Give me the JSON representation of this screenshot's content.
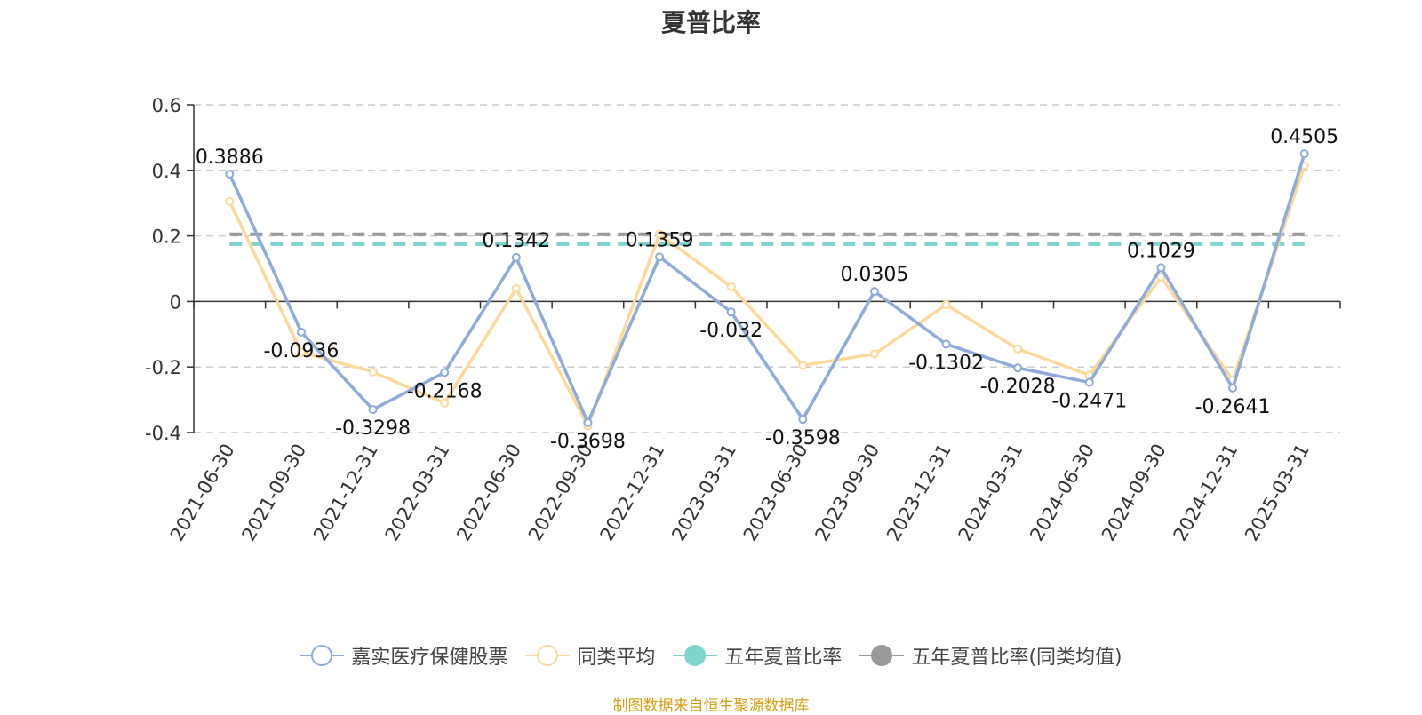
{
  "chart_data": {
    "type": "line",
    "title": "夏普比率",
    "xlabel": "",
    "ylabel": "",
    "ylim": [
      -0.4,
      0.6
    ],
    "yticks": [
      "0.6",
      "0.4",
      "0.2",
      "0",
      "-0.2",
      "-0.4"
    ],
    "grid": true,
    "legend_position": "bottom",
    "categories": [
      "2021-06-30",
      "2021-09-30",
      "2021-12-31",
      "2022-03-31",
      "2022-06-30",
      "2022-09-30",
      "2022-12-31",
      "2023-03-31",
      "2023-06-30",
      "2023-09-30",
      "2023-12-31",
      "2024-03-31",
      "2024-06-30",
      "2024-09-30",
      "2024-12-31",
      "2025-03-31"
    ],
    "series": [
      {
        "name": "嘉实医疗保健股票",
        "color": "#8eabd9",
        "values": [
          0.3886,
          -0.0936,
          -0.3298,
          -0.2168,
          0.1342,
          -0.3698,
          0.1359,
          -0.032,
          -0.3598,
          0.0305,
          -0.1302,
          -0.2028,
          -0.2471,
          0.1029,
          -0.2641,
          0.4505
        ],
        "labels": [
          "0.3886",
          "-0.0936",
          "-0.3298",
          "-0.2168",
          "0.1342",
          "-0.3698",
          "0.1359",
          "-0.032",
          "-0.3598",
          "0.0305",
          "-0.1302",
          "-0.2028",
          "-0.2471",
          "0.1029",
          "-0.2641",
          "0.4505"
        ]
      },
      {
        "name": "同类平均",
        "color": "#fcd99a",
        "values": [
          0.305,
          -0.155,
          -0.215,
          -0.31,
          0.04,
          -0.38,
          0.205,
          0.045,
          -0.195,
          -0.16,
          -0.01,
          -0.145,
          -0.225,
          0.075,
          -0.24,
          0.415
        ]
      },
      {
        "name": "五年夏普比率",
        "color": "#7fd4cf",
        "constant": 0.175
      },
      {
        "name": "五年夏普比率(同类均值)",
        "color": "#999999",
        "constant": 0.205
      }
    ]
  },
  "source_note": "制图数据来自恒生聚源数据库"
}
